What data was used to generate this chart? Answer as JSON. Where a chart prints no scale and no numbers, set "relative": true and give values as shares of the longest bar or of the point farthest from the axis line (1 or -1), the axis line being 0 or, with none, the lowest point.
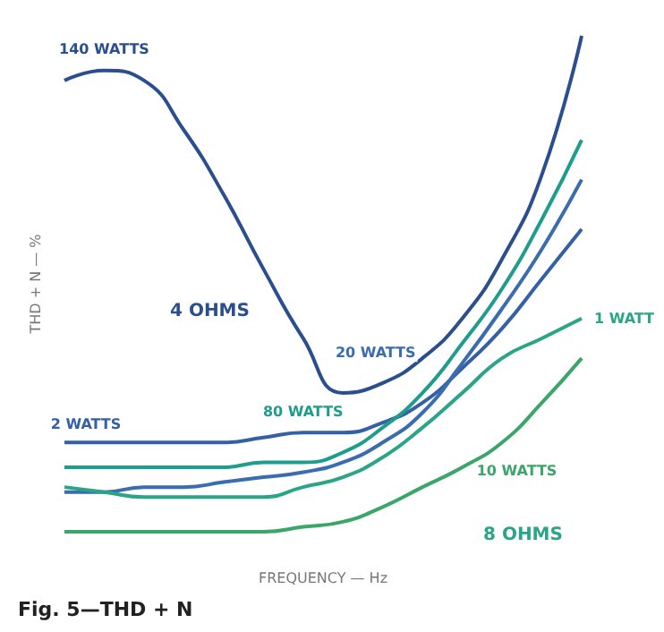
{
  "chart_data": {
    "type": "line",
    "relative": true,
    "ylabel": "THD + N — %",
    "xlabel": "FREQUENCY — Hz",
    "categories": [
      null,
      null,
      null,
      null,
      null,
      null,
      null,
      null,
      null,
      null,
      null,
      null,
      null,
      null
    ],
    "series": [
      {
        "name": "140 WATTS",
        "color": "#2b4f8e",
        "values": [
          0.91,
          0.93,
          0.91,
          0.81,
          0.68,
          0.53,
          0.39,
          0.28,
          0.3,
          0.35,
          0.43,
          0.55,
          0.72,
          1
        ]
      },
      {
        "name": "2 WATTS",
        "color": "#3560a6",
        "values": [
          0.18,
          0.18,
          0.18,
          0.18,
          0.18,
          0.19,
          0.2,
          0.2,
          0.22,
          0.26,
          0.33,
          0.41,
          0.51,
          0.61
        ]
      },
      {
        "name": "80 WATTS",
        "color": "#1e9c8c",
        "values": [
          0.13,
          0.13,
          0.13,
          0.13,
          0.13,
          0.14,
          0.14,
          0.16,
          0.21,
          0.28,
          0.38,
          0.49,
          0.63,
          0.79
        ]
      },
      {
        "name": "20 WATTS",
        "color": "#3a6cb0",
        "values": [
          0.08,
          0.08,
          0.09,
          0.09,
          0.1,
          0.11,
          0.12,
          0.14,
          0.18,
          0.24,
          0.34,
          0.45,
          0.57,
          0.71
        ]
      },
      {
        "name": "1 WATT",
        "color": "#2aa587",
        "values": [
          0.09,
          0.08,
          0.07,
          0.07,
          0.07,
          0.07,
          0.09,
          0.11,
          0.15,
          0.21,
          0.28,
          0.35,
          0.39,
          0.43
        ]
      },
      {
        "name": "10 WATTS",
        "color": "#3aa66a",
        "values": [
          0,
          0,
          0,
          0,
          0,
          0,
          0.01,
          0.02,
          0.05,
          0.09,
          0.13,
          0.18,
          0.26,
          0.35
        ]
      }
    ],
    "annotations": [
      "4 OHMS",
      "8 OHMS",
      "Fig. 5—THD + N"
    ],
    "line_style": "solid",
    "marker": "none",
    "legend": false,
    "grid": false
  }
}
